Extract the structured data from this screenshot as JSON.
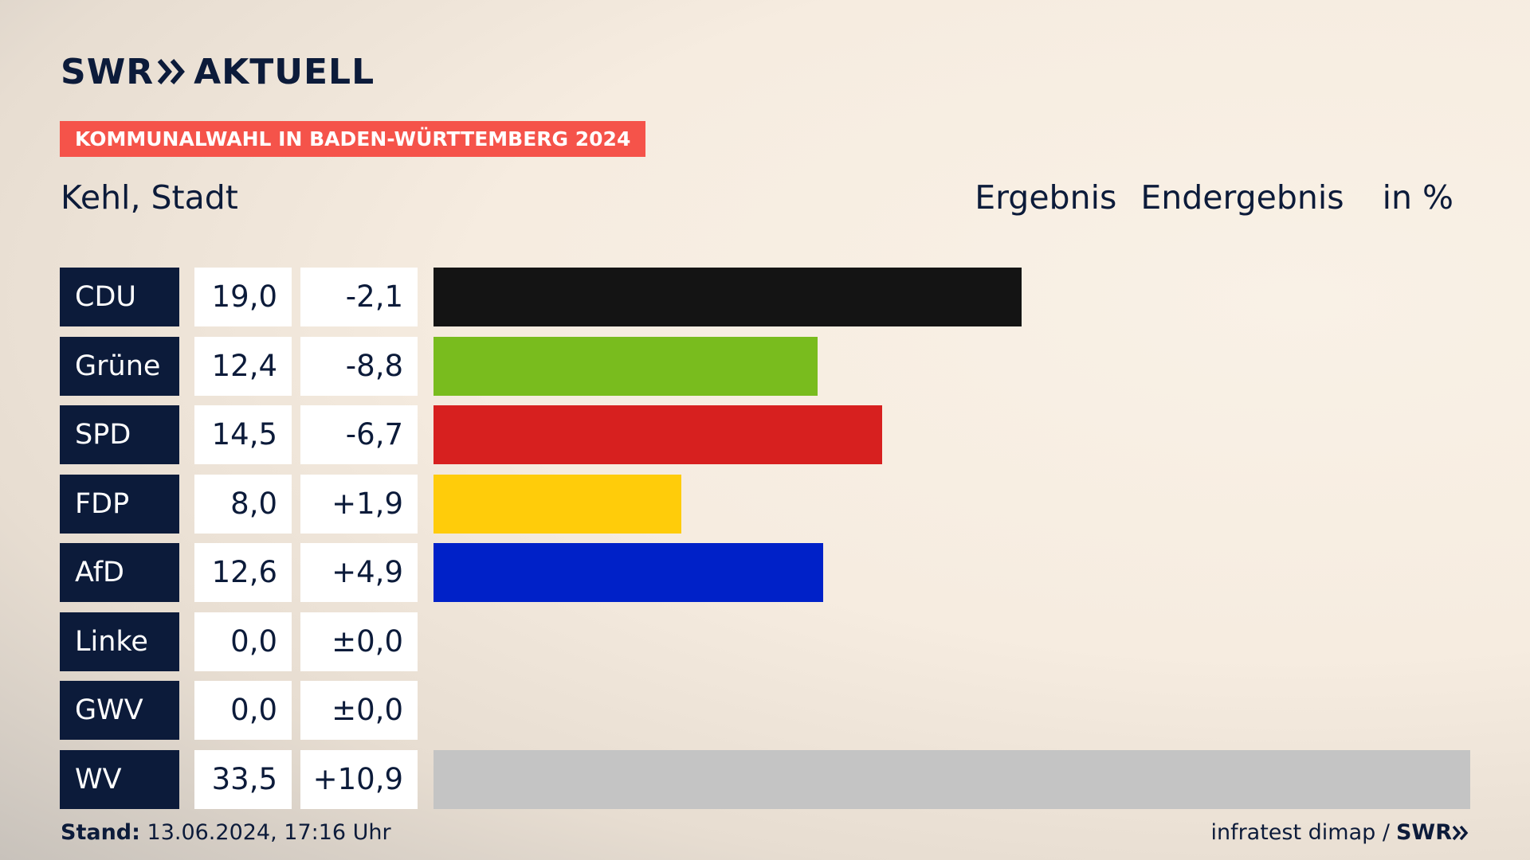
{
  "brand": {
    "logo_left": "SWR",
    "logo_right": "AKTUELL",
    "chevron_icon": "double-chevron-right-icon",
    "color_navy": "#0c1b3a",
    "color_accent": "#f5534a"
  },
  "header": {
    "kicker": "KOMMUNALWAHL IN BADEN-WÜRTTEMBERG 2024",
    "location": "Kehl, Stadt",
    "status_1": "Ergebnis",
    "status_2": "Endergebnis",
    "unit": "in %"
  },
  "chart_data": {
    "type": "bar",
    "categories": [
      "CDU",
      "Grüne",
      "SPD",
      "FDP",
      "AfD",
      "Linke",
      "GWV",
      "WV"
    ],
    "values": [
      19.0,
      12.4,
      14.5,
      8.0,
      12.6,
      0.0,
      0.0,
      33.5
    ],
    "values_text": [
      "19,0",
      "12,4",
      "14,5",
      "8,0",
      "12,6",
      "0,0",
      "0,0",
      "33,5"
    ],
    "changes_text": [
      "-2,1",
      "-8,8",
      "-6,7",
      "+1,9",
      "+4,9",
      "±0,0",
      "±0,0",
      "+10,9"
    ],
    "colors": [
      "#141414",
      "#79bc1e",
      "#d7201f",
      "#ffcc0a",
      "#0021c8",
      "#b2147c",
      "#7a7a7a",
      "#c4c4c4"
    ],
    "xlim": [
      0,
      33.5
    ]
  },
  "footer": {
    "stand_label": "Stand:",
    "stand_value": "13.06.2024, 17:16 Uhr",
    "source": "infratest dimap /",
    "source_brand": "SWR"
  }
}
